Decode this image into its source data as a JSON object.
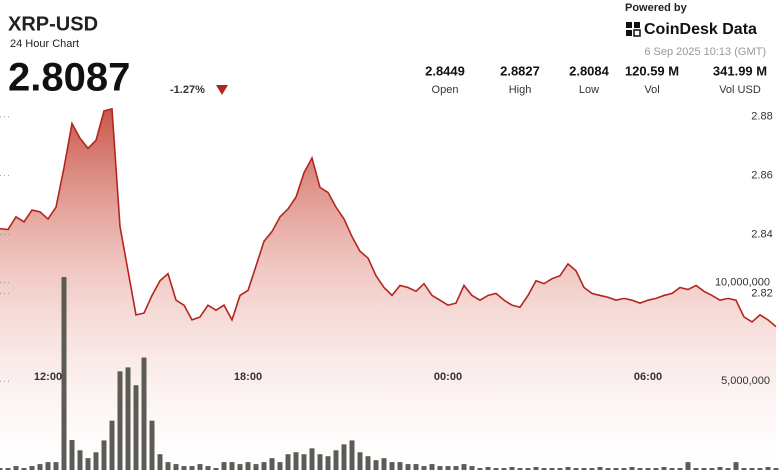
{
  "header": {
    "title": "XRP-USD",
    "subtitle": "24 Hour Chart",
    "price": "2.8087",
    "change": "-1.27%",
    "powered_by": "Powered by",
    "brand": "CoinDesk Data",
    "timestamp": "6 Sep 2025 10:13 (GMT)"
  },
  "stats": [
    {
      "value": "2.8449",
      "label": "Open"
    },
    {
      "value": "2.8827",
      "label": "High"
    },
    {
      "value": "2.8084",
      "label": "Low"
    },
    {
      "value": "120.59 M",
      "label": "Vol"
    },
    {
      "value": "341.99 M",
      "label": "Vol USD"
    }
  ],
  "chart_data": {
    "type": "line",
    "categories": [
      null,
      null,
      null,
      null,
      null,
      null,
      "12:00",
      null,
      null,
      null,
      null,
      null,
      null,
      null,
      null,
      null,
      null,
      null,
      null,
      null,
      null,
      null,
      null,
      null,
      null,
      null,
      null,
      null,
      null,
      null,
      null,
      "18:00",
      null,
      null,
      null,
      null,
      null,
      null,
      null,
      null,
      null,
      null,
      null,
      null,
      null,
      null,
      null,
      null,
      null,
      null,
      null,
      null,
      null,
      null,
      null,
      null,
      "00:00",
      null,
      null,
      null,
      null,
      null,
      null,
      null,
      null,
      null,
      null,
      null,
      null,
      null,
      null,
      null,
      null,
      null,
      null,
      null,
      null,
      null,
      null,
      null,
      null,
      "06:00",
      null,
      null,
      null,
      null,
      null,
      null,
      null,
      null,
      null,
      null,
      null,
      null,
      null,
      null,
      null,
      null
    ],
    "series": [
      {
        "color": "#b3261e",
        "values": [
          2.842,
          2.8417,
          2.846,
          2.8443,
          2.8483,
          2.8477,
          2.8453,
          2.8493,
          2.8627,
          2.8777,
          2.8727,
          2.8693,
          2.872,
          2.882,
          2.8827,
          2.8427,
          2.8277,
          2.8127,
          2.8133,
          2.8193,
          2.8243,
          2.8267,
          2.8177,
          2.816,
          2.811,
          2.812,
          2.816,
          2.8143,
          2.816,
          2.811,
          2.8193,
          2.821,
          2.8293,
          2.8377,
          2.841,
          2.846,
          2.8487,
          2.8527,
          2.861,
          2.866,
          2.856,
          2.8543,
          2.8493,
          2.8453,
          2.8393,
          2.8343,
          2.832,
          2.826,
          2.822,
          2.8193,
          2.8227,
          2.822,
          2.8207,
          2.8233,
          2.8193,
          2.8177,
          2.816,
          2.8167,
          2.8227,
          2.8193,
          2.8177,
          2.8193,
          2.82,
          2.8177,
          2.816,
          2.8153,
          2.8193,
          2.8243,
          2.8233,
          2.825,
          2.826,
          2.83,
          2.8277,
          2.822,
          2.82,
          2.8193,
          2.8187,
          2.8177,
          2.8183,
          2.8177,
          2.8167,
          2.8177,
          2.8183,
          2.8193,
          2.82,
          2.822,
          2.8213,
          2.8227,
          2.8207,
          2.8193,
          2.8177,
          2.8183,
          2.8177,
          2.812,
          2.8103,
          2.8127,
          2.811,
          2.8087
        ]
      },
      {
        "color": "#5c5c55",
        "axis": "y2",
        "type": "bar",
        "values": [
          600000,
          600000,
          700000,
          600000,
          700000,
          800000,
          900000,
          900000,
          10280000,
          2020000,
          1500000,
          1100000,
          1400000,
          2000000,
          3000000,
          5500000,
          5700000,
          4800000,
          6200000,
          3000000,
          1300000,
          900000,
          800000,
          700000,
          700000,
          800000,
          700000,
          600000,
          900000,
          900000,
          800000,
          900000,
          800000,
          900000,
          1100000,
          900000,
          1300000,
          1400000,
          1300000,
          1600000,
          1300000,
          1200000,
          1500000,
          1800000,
          2000000,
          1400000,
          1200000,
          1000000,
          1100000,
          900000,
          900000,
          800000,
          800000,
          700000,
          800000,
          700000,
          700000,
          700000,
          800000,
          700000,
          600000,
          650000,
          600000,
          600000,
          650000,
          600000,
          600000,
          650000,
          600000,
          600000,
          600000,
          650000,
          600000,
          600000,
          600000,
          650000,
          600000,
          600000,
          600000,
          650000,
          600000,
          600000,
          600000,
          650000,
          600000,
          600000,
          900000,
          600000,
          600000,
          600000,
          650000,
          600000,
          900000,
          600000,
          600000,
          600000,
          650000,
          600000
        ]
      }
    ],
    "ylim": [
      2.76,
      2.884
    ],
    "yticks": [
      2.82,
      2.84,
      2.86,
      2.88
    ],
    "y2lim": [
      500000,
      19000000
    ],
    "y2ticks": [
      {
        "value": 5000000,
        "label": "5,000,000"
      },
      {
        "value": 10000000,
        "label": "10,000,000"
      }
    ],
    "grid": true
  }
}
